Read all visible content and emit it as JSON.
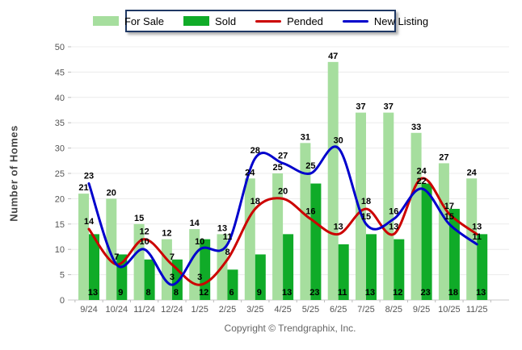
{
  "legend": {
    "items": [
      {
        "label": "For Sale",
        "type": "bar",
        "color": "#A6DE9E"
      },
      {
        "label": "Sold",
        "type": "bar",
        "color": "#10AB28"
      },
      {
        "label": "Pended",
        "type": "line",
        "color": "#CC0000"
      },
      {
        "label": "New Listing",
        "type": "line",
        "color": "#0000CC"
      }
    ]
  },
  "chart_data": {
    "type": "bar",
    "subtype": "grouped bars with overlaid smooth lines",
    "categories": [
      "9/24",
      "10/24",
      "11/24",
      "12/24",
      "1/25",
      "2/25",
      "3/25",
      "4/25",
      "5/25",
      "6/25",
      "7/25",
      "8/25",
      "9/25",
      "10/25",
      "11/25"
    ],
    "series": [
      {
        "name": "For Sale",
        "type": "bar",
        "color": "#A6DE9E",
        "values": [
          21,
          20,
          15,
          12,
          14,
          13,
          24,
          25,
          31,
          47,
          37,
          37,
          33,
          27,
          24
        ]
      },
      {
        "name": "Sold",
        "type": "bar",
        "color": "#10AB28",
        "values": [
          13,
          9,
          8,
          8,
          12,
          6,
          9,
          13,
          23,
          11,
          13,
          12,
          23,
          18,
          13
        ]
      },
      {
        "name": "Pended",
        "type": "line",
        "color": "#CC0000",
        "values": [
          14,
          7,
          12,
          7,
          3,
          8,
          18,
          20,
          16,
          13,
          18,
          13,
          24,
          17,
          13
        ]
      },
      {
        "name": "New Listing",
        "type": "line",
        "color": "#0000CC",
        "values": [
          23,
          7,
          10,
          3,
          10,
          11,
          28,
          27,
          25,
          30,
          15,
          16,
          22,
          15,
          11
        ]
      }
    ],
    "title": "",
    "xlabel": "",
    "ylabel": "Number of Homes",
    "ylim": [
      0,
      50
    ],
    "ytick_step": 5,
    "yticks": [
      0,
      5,
      10,
      15,
      20,
      25,
      30,
      35,
      40,
      45,
      50
    ],
    "grid": true,
    "legend_position": "top-center",
    "data_labels": true
  },
  "colors": {
    "grid": "#ECECEC",
    "axis_line": "#C8C8C8",
    "tick": "#BBBBBB",
    "axis_text": "#555555",
    "data_label_text": "#000000",
    "legend_border": "#1F3864"
  },
  "footer": {
    "copyright": "Copyright © Trendgraphix, Inc."
  }
}
